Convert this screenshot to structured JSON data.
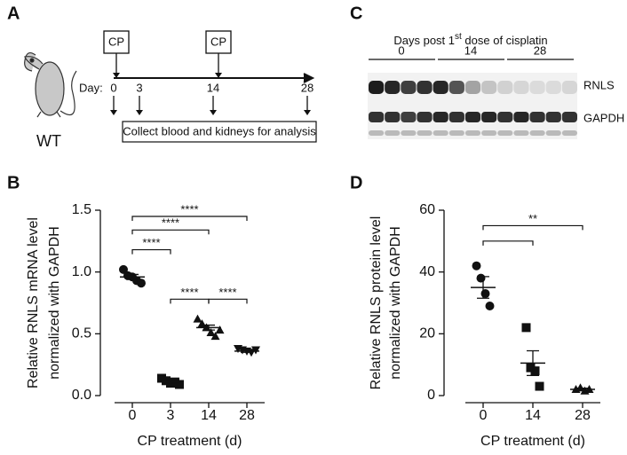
{
  "panel_a": {
    "letter": "A",
    "cp_labels": [
      "CP",
      "CP"
    ],
    "day_label": "Day:",
    "days": [
      "0",
      "3",
      "14",
      "28"
    ],
    "collect": "Collect blood and kidneys for analysis",
    "strain": "WT"
  },
  "panel_c": {
    "letter": "C",
    "title_parts": [
      "Days post 1",
      "st",
      " dose of cisplatin"
    ],
    "groups": [
      "0",
      "14",
      "28"
    ],
    "rows": [
      "RNLS",
      "GAPDH"
    ]
  },
  "chart_data": [
    {
      "type": "scatter",
      "panel_label": "B",
      "ylabel": [
        "Relative RNLS mRNA level",
        "normalized with GAPDH"
      ],
      "xlabel": "CP treatment (d)",
      "categories": [
        "0",
        "3",
        "14",
        "28"
      ],
      "points": [
        [
          1.02,
          0.97,
          0.96,
          0.93,
          0.91
        ],
        [
          0.14,
          0.12,
          0.1,
          0.11,
          0.09
        ],
        [
          0.62,
          0.58,
          0.55,
          0.51,
          0.48,
          0.53
        ],
        [
          0.38,
          0.37,
          0.36,
          0.35,
          0.37
        ]
      ],
      "means": [
        0.96,
        0.11,
        0.55,
        0.36
      ],
      "sems": [
        0.02,
        0.01,
        0.02,
        0.01
      ],
      "ylim": [
        0,
        1.5
      ],
      "yticks": [
        {
          "value": 0,
          "label": "0.0"
        },
        {
          "value": 0.5,
          "label": "0.5"
        },
        {
          "value": 1,
          "label": "1.0"
        },
        {
          "value": 1.5,
          "label": "1.5"
        }
      ],
      "brackets": [
        {
          "pair": [
            "0",
            "28"
          ],
          "label": "****"
        },
        {
          "pair": [
            "0",
            "14"
          ],
          "label": "****"
        },
        {
          "pair": [
            "0",
            "3"
          ],
          "label": "****"
        },
        {
          "pair": [
            "3",
            "14"
          ],
          "label": "****"
        },
        {
          "pair": [
            "14",
            "28"
          ],
          "label": "****"
        }
      ],
      "color": "#111111"
    },
    {
      "type": "scatter",
      "panel_label": "D",
      "ylabel": [
        "Relative RNLS protein level",
        "normalized with GAPDH"
      ],
      "xlabel": "CP treatment (d)",
      "categories": [
        "0",
        "14",
        "28"
      ],
      "points": [
        [
          42,
          38,
          33,
          29
        ],
        [
          22,
          9,
          8,
          3
        ],
        [
          2,
          2.5,
          1.5,
          2
        ]
      ],
      "means": [
        35,
        10.5,
        2
      ],
      "sems": [
        3.5,
        4,
        0.4
      ],
      "ylim": [
        0,
        60
      ],
      "yticks": [
        0,
        20,
        40,
        60
      ],
      "brackets": [
        {
          "pair": [
            "0",
            "28"
          ],
          "label": "**"
        },
        {
          "pair": [
            "0",
            "14"
          ]
        }
      ],
      "color": "#111111"
    }
  ]
}
